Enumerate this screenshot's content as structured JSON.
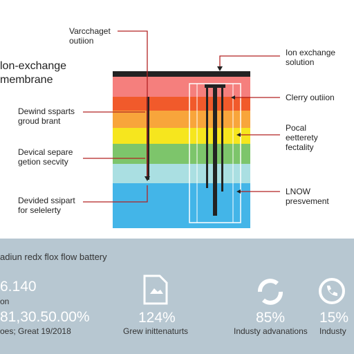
{
  "diagram": {
    "top_label": [
      "Varcchaget",
      "outiion"
    ],
    "title": [
      "lon-exchange",
      "membrane"
    ],
    "right_labels": [
      [
        "Ion exchange",
        "solution"
      ],
      [
        "Clerry outiion"
      ],
      [
        "Pocal",
        "eetterety",
        "fectality"
      ],
      [
        "LNOW",
        "presvement"
      ]
    ],
    "left_labels": [
      [
        "Dewind ssparts",
        "groud brant"
      ],
      [
        "Devical separe",
        "getion secvity"
      ],
      [
        "Devided ssipart",
        "for selelerty"
      ]
    ]
  },
  "footer": {
    "heading": "adiun redx flox flow battery",
    "stats": [
      {
        "value": "6.140",
        "lines": [
          "on",
          "81,30.50.00%",
          "oes; Great 19/2018"
        ]
      },
      {
        "value": "124%",
        "lines": [
          "Grew inittenaturts"
        ]
      },
      {
        "value": "85%",
        "lines": [
          "Industy advanations"
        ]
      },
      {
        "value": "15%",
        "lines": [
          "Industy"
        ]
      }
    ]
  }
}
